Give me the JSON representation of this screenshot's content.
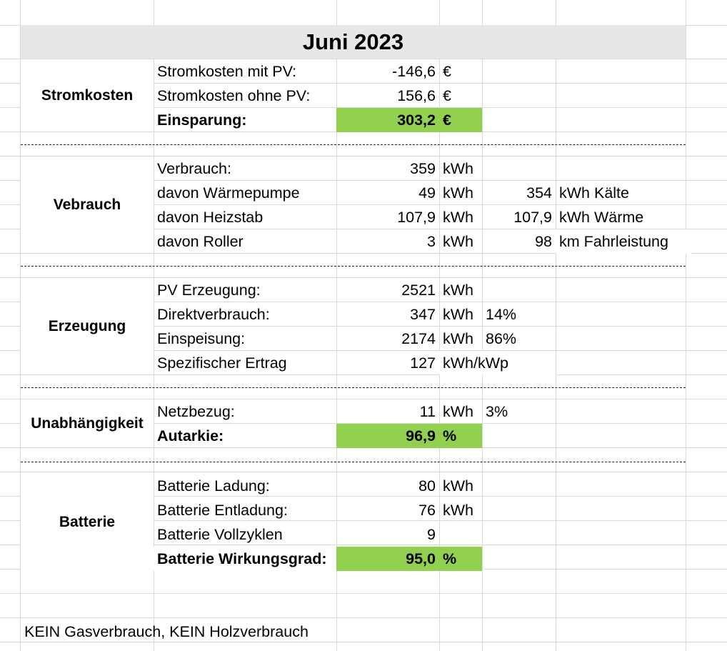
{
  "title": "Juni 2023",
  "stromkosten": {
    "label": "Stromkosten",
    "rows": [
      {
        "label": "Stromkosten mit PV:",
        "value": "-146,6",
        "unit": "€"
      },
      {
        "label": "Stromkosten ohne PV:",
        "value": "156,6",
        "unit": "€"
      },
      {
        "label": "Einsparung:",
        "value": "303,2",
        "unit": "€"
      }
    ]
  },
  "verbrauch": {
    "label": "Vebrauch",
    "rows": [
      {
        "label": "Verbrauch:",
        "value": "359",
        "unit": "kWh"
      },
      {
        "label": "davon Wärmepumpe",
        "value": "49",
        "unit": "kWh",
        "value2": "354",
        "unit2": "kWh Kälte"
      },
      {
        "label": "davon Heizstab",
        "value": "107,9",
        "unit": "kWh",
        "value2": "107,9",
        "unit2": "kWh Wärme"
      },
      {
        "label": "davon Roller",
        "value": "3",
        "unit": "kWh",
        "value2": "98",
        "unit2": "km Fahrleistung"
      }
    ]
  },
  "erzeugung": {
    "label": "Erzeugung",
    "rows": [
      {
        "label": "PV Erzeugung:",
        "value": "2521",
        "unit": "kWh"
      },
      {
        "label": "Direktverbrauch:",
        "value": "347",
        "unit": "kWh",
        "pct": "14%"
      },
      {
        "label": "Einspeisung:",
        "value": "2174",
        "unit": "kWh",
        "pct": "86%"
      },
      {
        "label": "Spezifischer Ertrag",
        "value": "127",
        "unit": "kWh/kWp"
      }
    ]
  },
  "unabhaengigkeit": {
    "label": "Unabhängigkeit",
    "rows": [
      {
        "label": "Netzbezug:",
        "value": "11",
        "unit": "kWh",
        "pct": "3%"
      },
      {
        "label": "Autarkie:",
        "value": "96,9",
        "unit": "%"
      }
    ]
  },
  "batterie": {
    "label": "Batterie",
    "rows": [
      {
        "label": "Batterie Ladung:",
        "value": "80",
        "unit": "kWh"
      },
      {
        "label": "Batterie Entladung:",
        "value": "76",
        "unit": "kWh"
      },
      {
        "label": "Batterie Vollzyklen",
        "value": "9"
      },
      {
        "label": "Batterie Wirkungsgrad:",
        "value": "95,0",
        "unit": "%"
      }
    ]
  },
  "separator": "-------------------------------------------------------------------------------------------------------------",
  "footer": "KEIN Gasverbrauch, KEIN Holzverbrauch",
  "colors": {
    "highlight": "#92d050",
    "title_bg": "#e7e7e7",
    "gridline": "#d9d9d9"
  }
}
